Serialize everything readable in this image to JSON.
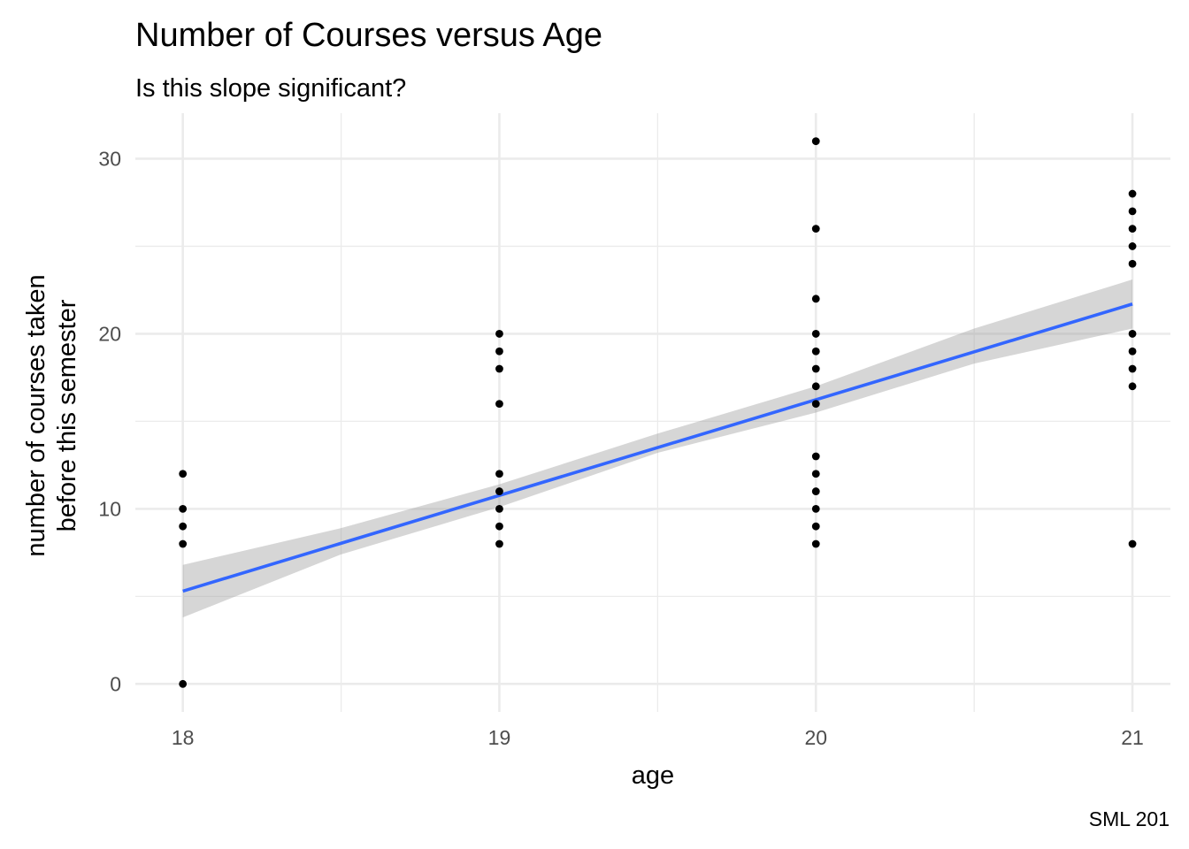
{
  "chart_data": {
    "type": "scatter",
    "title": "Number of Courses versus Age",
    "subtitle": "Is this slope significant?",
    "xlabel": "age",
    "ylabel": [
      "number of courses taken",
      "before this semester"
    ],
    "caption": "SML 201",
    "xlim": [
      17.85,
      21.12
    ],
    "ylim": [
      -1.6,
      32.6
    ],
    "x_ticks": [
      18,
      19,
      20,
      21
    ],
    "y_ticks": [
      0,
      10,
      20,
      30
    ],
    "x_minor": [
      18.5,
      19.5,
      20.5
    ],
    "y_minor": [
      5,
      15,
      25
    ],
    "grid": true,
    "legend": "none",
    "points": [
      {
        "x": 18,
        "y": 0
      },
      {
        "x": 18,
        "y": 8
      },
      {
        "x": 18,
        "y": 9
      },
      {
        "x": 18,
        "y": 10
      },
      {
        "x": 18,
        "y": 12
      },
      {
        "x": 19,
        "y": 8
      },
      {
        "x": 19,
        "y": 9
      },
      {
        "x": 19,
        "y": 10
      },
      {
        "x": 19,
        "y": 11
      },
      {
        "x": 19,
        "y": 12
      },
      {
        "x": 19,
        "y": 16
      },
      {
        "x": 19,
        "y": 18
      },
      {
        "x": 19,
        "y": 19
      },
      {
        "x": 19,
        "y": 20
      },
      {
        "x": 20,
        "y": 8
      },
      {
        "x": 20,
        "y": 9
      },
      {
        "x": 20,
        "y": 10
      },
      {
        "x": 20,
        "y": 11
      },
      {
        "x": 20,
        "y": 12
      },
      {
        "x": 20,
        "y": 13
      },
      {
        "x": 20,
        "y": 16
      },
      {
        "x": 20,
        "y": 17
      },
      {
        "x": 20,
        "y": 18
      },
      {
        "x": 20,
        "y": 19
      },
      {
        "x": 20,
        "y": 20
      },
      {
        "x": 20,
        "y": 22
      },
      {
        "x": 20,
        "y": 26
      },
      {
        "x": 20,
        "y": 31
      },
      {
        "x": 21,
        "y": 8
      },
      {
        "x": 21,
        "y": 17
      },
      {
        "x": 21,
        "y": 18
      },
      {
        "x": 21,
        "y": 19
      },
      {
        "x": 21,
        "y": 20
      },
      {
        "x": 21,
        "y": 24
      },
      {
        "x": 21,
        "y": 25
      },
      {
        "x": 21,
        "y": 26
      },
      {
        "x": 21,
        "y": 27
      },
      {
        "x": 21,
        "y": 28
      }
    ],
    "fit_line": {
      "method": "linear regression",
      "x": [
        18,
        21
      ],
      "y": [
        5.3,
        21.7
      ],
      "ci_x": [
        18,
        18.5,
        19,
        19.5,
        20,
        20.5,
        21
      ],
      "ci_lower": [
        3.8,
        7.4,
        10.1,
        13.2,
        15.5,
        18.3,
        20.3
      ],
      "ci_upper": [
        6.8,
        8.9,
        11.4,
        14.3,
        17.0,
        20.3,
        23.1
      ]
    },
    "colors": {
      "points": "#000000",
      "line": "#3366ff",
      "ribbon": "#999999",
      "grid": "#ebebeb"
    }
  }
}
